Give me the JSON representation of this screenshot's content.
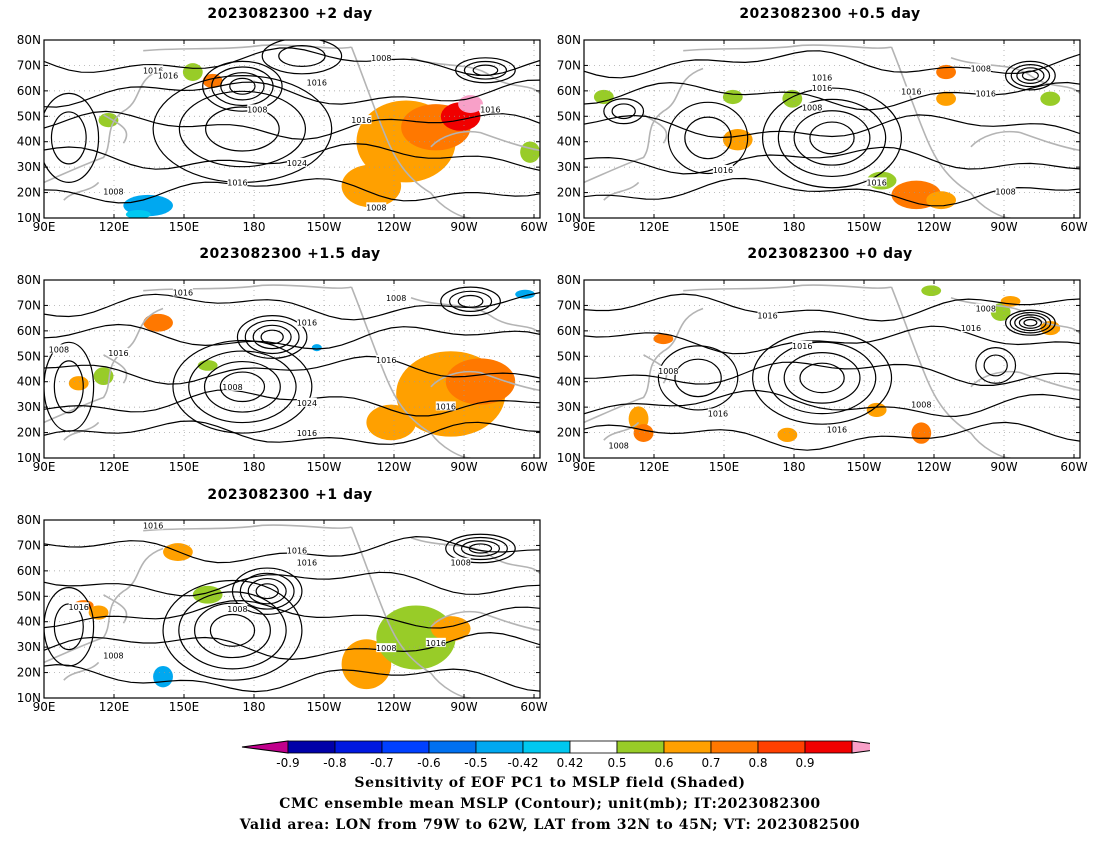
{
  "panels": [
    {
      "title": "2023082300  +2 day",
      "contour_labels": [
        "1016",
        "1016",
        "1008",
        "1016",
        "1008",
        "1016",
        "1024",
        "1016",
        "1008",
        "1016",
        "1008"
      ]
    },
    {
      "title": "2023082300  +0.5 day",
      "contour_labels": [
        "1008",
        "1016",
        "1016",
        "1008",
        "1016",
        "1016",
        "1016",
        "1016",
        "1008"
      ]
    },
    {
      "title": "2023082300  +1.5 day",
      "contour_labels": [
        "1016",
        "1008",
        "1008",
        "1016",
        "1016",
        "1016",
        "1008",
        "1024",
        "1016",
        "1016"
      ]
    },
    {
      "title": "2023082300  +0 day",
      "contour_labels": [
        "1016",
        "1008",
        "1016",
        "1016",
        "1008",
        "1016",
        "1016",
        "1008",
        "1008"
      ]
    },
    {
      "title": "2023082300  +1 day",
      "contour_labels": [
        "1016",
        "1016",
        "1016",
        "1008",
        "1016",
        "1008",
        "1008",
        "1008",
        "1016"
      ]
    }
  ],
  "axes": {
    "lat_labels": [
      "80N",
      "70N",
      "60N",
      "50N",
      "40N",
      "30N",
      "20N",
      "10N"
    ],
    "lon_labels": [
      "90E",
      "120E",
      "150E",
      "180",
      "150W",
      "120W",
      "90W",
      "60W"
    ]
  },
  "colorbar": {
    "labels": [
      "-0.9",
      "-0.8",
      "-0.7",
      "-0.6",
      "-0.5",
      "-0.42",
      "0.42",
      "0.5",
      "0.6",
      "0.7",
      "0.8",
      "0.9"
    ],
    "colors": {
      "low_triangle": "#c0008c",
      "bins": [
        "#0000a8",
        "#0018e0",
        "#0040ff",
        "#0070f0",
        "#00a8f0",
        "#00c8f0",
        "#ffffff",
        "#98cc28",
        "#ffa000",
        "#ff7800",
        "#ff4000",
        "#f00000"
      ],
      "high_triangle": "#f8a0c8"
    }
  },
  "caption": {
    "line1": "Sensitivity of EOF PC1 to MSLP field (Shaded)",
    "line2": "CMC ensemble mean MSLP (Contour); unit(mb); IT:2023082300",
    "line3": "Valid area: LON from 79W to 62W, LAT from 32N to 45N; VT: 2023082500"
  }
}
